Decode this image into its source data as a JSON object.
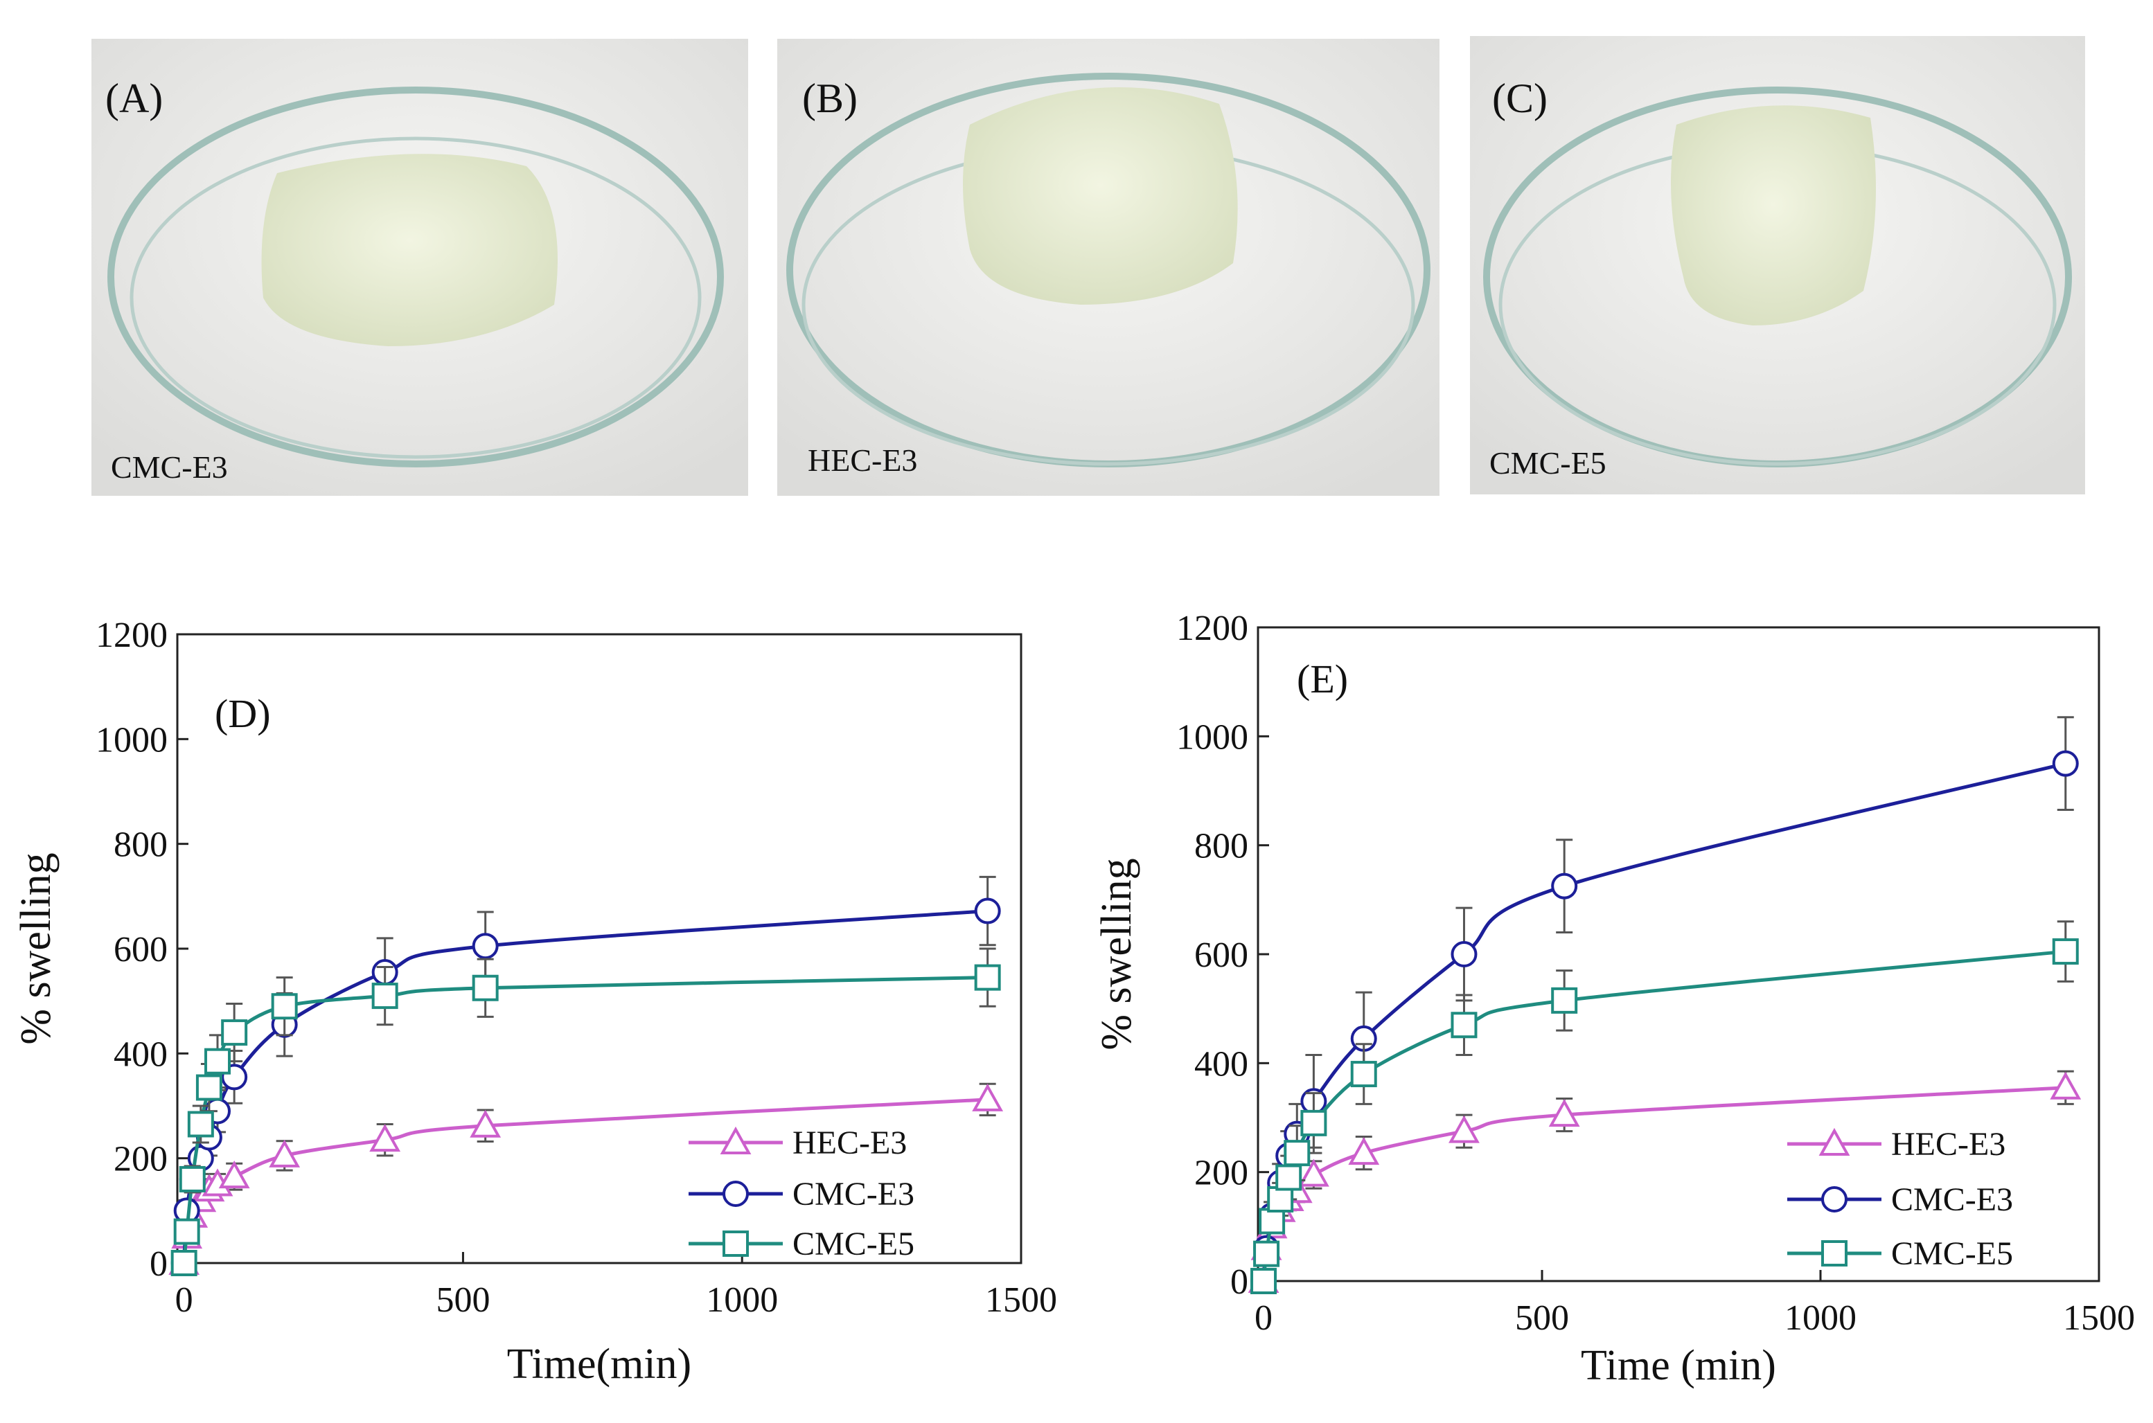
{
  "photos": [
    {
      "label": "(A)",
      "caption": "CMC-E3"
    },
    {
      "label": "(B)",
      "caption": "HEC-E3"
    },
    {
      "label": "(C)",
      "caption": "CMC-E5"
    }
  ],
  "chart_data": [
    {
      "type": "line",
      "panel_label": "(D)",
      "x_label": "Time(min)",
      "y_label": "% swelling",
      "x": [
        0,
        5,
        15,
        30,
        45,
        60,
        90,
        180,
        360,
        540,
        1440
      ],
      "xlim": [
        -12,
        1500
      ],
      "xticks": [
        0,
        500,
        1000,
        1500
      ],
      "ylim": [
        0,
        1200
      ],
      "yticks": [
        0,
        200,
        400,
        600,
        800,
        1000,
        1200
      ],
      "legend": "lower right",
      "series": [
        {
          "name": "HEC-E3",
          "color": "#cc5fcc",
          "marker": "triangle",
          "values": [
            0,
            50,
            90,
            120,
            140,
            150,
            165,
            205,
            235,
            262,
            312
          ],
          "errors": [
            0,
            10,
            15,
            18,
            20,
            20,
            25,
            28,
            30,
            30,
            30
          ]
        },
        {
          "name": "CMC-E3",
          "color": "#1c1f99",
          "marker": "circle",
          "values": [
            0,
            100,
            160,
            200,
            240,
            290,
            355,
            455,
            555,
            605,
            672
          ],
          "errors": [
            0,
            20,
            25,
            30,
            35,
            40,
            50,
            60,
            65,
            65,
            65
          ]
        },
        {
          "name": "CMC-E5",
          "color": "#1f8c80",
          "marker": "square",
          "values": [
            0,
            60,
            160,
            265,
            335,
            385,
            440,
            490,
            510,
            525,
            545
          ],
          "errors": [
            0,
            15,
            25,
            35,
            45,
            50,
            55,
            55,
            55,
            55,
            55
          ]
        }
      ]
    },
    {
      "type": "line",
      "panel_label": "(E)",
      "x_label": "Time (min)",
      "y_label": "% swelling",
      "x": [
        0,
        5,
        15,
        30,
        45,
        60,
        90,
        180,
        360,
        540,
        1440
      ],
      "xlim": [
        -10,
        1500
      ],
      "xticks": [
        0,
        500,
        1000,
        1500
      ],
      "ylim": [
        0,
        1200
      ],
      "yticks": [
        0,
        200,
        400,
        600,
        800,
        1000,
        1200
      ],
      "legend": "lower right",
      "series": [
        {
          "name": "HEC-E3",
          "color": "#cc5fcc",
          "marker": "triangle",
          "values": [
            0,
            60,
            100,
            130,
            150,
            165,
            195,
            235,
            275,
            305,
            355
          ],
          "errors": [
            0,
            10,
            15,
            18,
            20,
            20,
            25,
            30,
            30,
            30,
            30
          ]
        },
        {
          "name": "CMC-E3",
          "color": "#1c1f99",
          "marker": "circle",
          "values": [
            0,
            60,
            120,
            180,
            230,
            270,
            330,
            445,
            600,
            725,
            950
          ],
          "errors": [
            0,
            15,
            25,
            35,
            45,
            55,
            85,
            85,
            85,
            85,
            85
          ]
        },
        {
          "name": "CMC-E5",
          "color": "#1f8c80",
          "marker": "square",
          "values": [
            0,
            50,
            110,
            150,
            190,
            235,
            290,
            380,
            470,
            515,
            605
          ],
          "errors": [
            0,
            15,
            20,
            30,
            40,
            50,
            55,
            55,
            55,
            55,
            55
          ]
        }
      ]
    }
  ]
}
